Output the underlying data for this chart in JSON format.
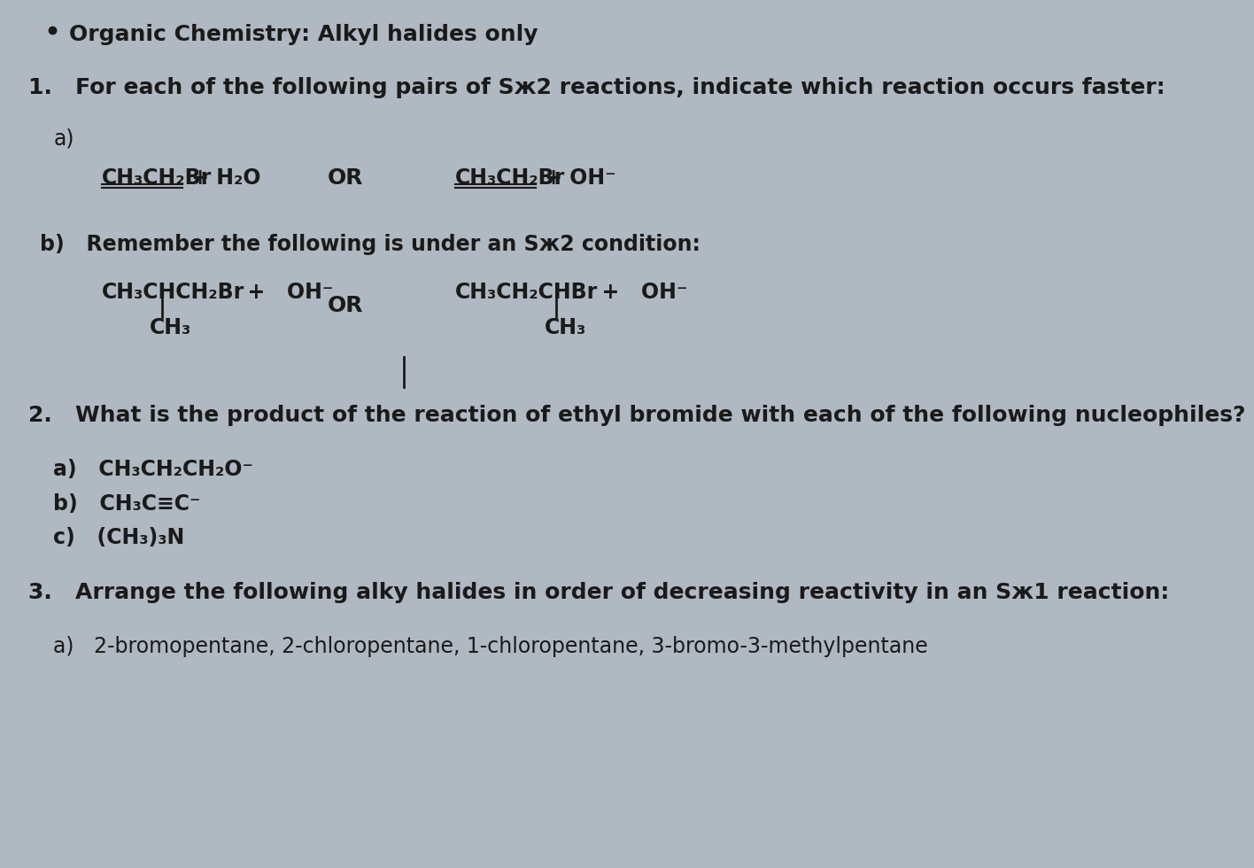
{
  "bg_color": "#b0b8c1",
  "text_color": "#1a1a1a",
  "bullet_text": "Organic Chemistry: Alkyl halides only",
  "q1_text": "1.   For each of the following pairs of Sж2 reactions, indicate which reaction occurs faster:",
  "q1a_label": "a)",
  "q1b_label": "b)   Remember the following is under an Sж2 condition:",
  "q2_text": "2.   What is the product of the reaction of ethyl bromide with each of the following nucleophiles?",
  "q2a": "a)   CH₃CH₂CH₂O⁻",
  "q2b": "b)   CH₃C≡C⁻",
  "q2c": "c)   (CH₃)₃N",
  "q3_text": "3.   Arrange the following alky halides in order of decreasing reactivity in an Sж1 reaction:",
  "q3a": "a)   2-bromopentane, 2-chloropentane, 1-chloropentane, 3-bromo-3-methylpentane",
  "font_size_main": 18,
  "font_size_body": 17,
  "font_size_small": 16
}
